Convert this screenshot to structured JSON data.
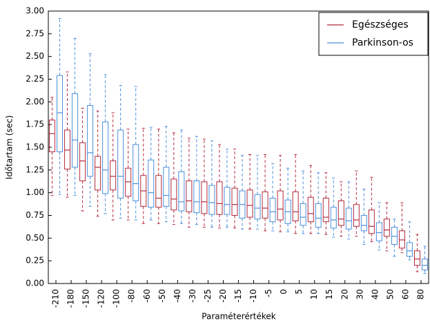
{
  "chart_data": {
    "type": "boxplot",
    "xlabel": "Paraméterértékek",
    "ylabel": "Időtartam (sec)",
    "categories": [
      "-210",
      "-180",
      "-150",
      "-120",
      "-100",
      "-80",
      "-60",
      "-50",
      "-40",
      "-30",
      "-25",
      "-20",
      "-15",
      "-10",
      "-5",
      "0",
      "5",
      "10",
      "15",
      "20",
      "30",
      "40",
      "50",
      "60",
      "80"
    ],
    "ylim": [
      0,
      3
    ],
    "yticks": [
      {
        "value": 0,
        "label": "0.00"
      },
      {
        "value": 0.25,
        "label": "0.25"
      },
      {
        "value": 0.5,
        "label": "0.50"
      },
      {
        "value": 0.75,
        "label": "0.75"
      },
      {
        "value": 1,
        "label": "1.00"
      },
      {
        "value": 1.25,
        "label": "1.25"
      },
      {
        "value": 1.5,
        "label": "1.50"
      },
      {
        "value": 1.75,
        "label": "1.75"
      },
      {
        "value": 2,
        "label": "2.00"
      },
      {
        "value": 2.25,
        "label": "2.25"
      },
      {
        "value": 2.5,
        "label": "2.50"
      },
      {
        "value": 2.75,
        "label": "2.75"
      },
      {
        "value": 3,
        "label": "3.00"
      }
    ],
    "legend": "upper right",
    "series": [
      {
        "name": "Egészséges",
        "color": "#b2283a",
        "low": [
          0.97,
          0.95,
          0.8,
          0.74,
          0.7,
          0.7,
          0.66,
          0.66,
          0.65,
          0.62,
          0.62,
          0.61,
          0.61,
          0.6,
          0.58,
          0.57,
          0.55,
          0.55,
          0.54,
          0.52,
          0.52,
          0.46,
          0.36,
          0.34,
          0.13
        ],
        "q1": [
          1.45,
          1.26,
          1.13,
          1.03,
          1.03,
          0.96,
          0.85,
          0.84,
          0.81,
          0.79,
          0.77,
          0.76,
          0.75,
          0.73,
          0.72,
          0.7,
          0.69,
          0.68,
          0.68,
          0.64,
          0.63,
          0.55,
          0.52,
          0.39,
          0.2
        ],
        "median": [
          1.65,
          1.47,
          1.35,
          1.28,
          1.18,
          1.12,
          1.02,
          0.94,
          0.93,
          0.91,
          0.9,
          0.88,
          0.87,
          0.86,
          0.83,
          0.82,
          0.79,
          0.77,
          0.73,
          0.71,
          0.7,
          0.63,
          0.59,
          0.48,
          0.27
        ],
        "q3": [
          1.8,
          1.69,
          1.55,
          1.4,
          1.35,
          1.27,
          1.19,
          1.19,
          1.15,
          1.13,
          1.12,
          1.12,
          1.05,
          1.03,
          1.01,
          1.02,
          1.01,
          0.95,
          0.94,
          0.91,
          0.87,
          0.81,
          0.71,
          0.58,
          0.36
        ],
        "high": [
          2.05,
          2.33,
          1.93,
          1.9,
          1.88,
          1.7,
          1.71,
          1.7,
          1.66,
          1.6,
          1.59,
          1.53,
          1.48,
          1.42,
          1.42,
          1.41,
          1.42,
          1.3,
          1.22,
          1.12,
          1.24,
          1.17,
          0.89,
          0.89,
          0.54
        ]
      },
      {
        "name": "Parkinson-os",
        "color": "#4a8fdc",
        "low": [
          0.98,
          0.97,
          0.85,
          0.77,
          0.72,
          0.7,
          0.7,
          0.68,
          0.66,
          0.65,
          0.62,
          0.62,
          0.6,
          0.6,
          0.58,
          0.57,
          0.55,
          0.55,
          0.51,
          0.49,
          0.43,
          0.37,
          0.3,
          0.26,
          0.11
        ],
        "q1": [
          1.45,
          1.28,
          1.18,
          0.99,
          0.94,
          0.91,
          0.84,
          0.85,
          0.8,
          0.78,
          0.76,
          0.76,
          0.72,
          0.71,
          0.68,
          0.66,
          0.64,
          0.62,
          0.61,
          0.6,
          0.58,
          0.47,
          0.43,
          0.3,
          0.15
        ],
        "median": [
          1.88,
          1.58,
          1.44,
          1.25,
          1.18,
          1.1,
          1.0,
          0.97,
          0.9,
          0.9,
          0.89,
          0.87,
          0.87,
          0.83,
          0.79,
          0.79,
          0.73,
          0.72,
          0.7,
          0.69,
          0.64,
          0.56,
          0.52,
          0.36,
          0.2
        ],
        "q3": [
          2.29,
          2.09,
          1.96,
          1.78,
          1.69,
          1.53,
          1.36,
          1.28,
          1.23,
          1.13,
          1.08,
          1.06,
          1.02,
          0.98,
          0.94,
          0.92,
          0.88,
          0.88,
          0.84,
          0.83,
          0.75,
          0.67,
          0.62,
          0.45,
          0.27
        ],
        "high": [
          2.92,
          2.7,
          2.53,
          2.3,
          2.18,
          2.17,
          1.72,
          1.73,
          1.69,
          1.62,
          1.57,
          1.48,
          1.41,
          1.41,
          1.32,
          1.27,
          1.24,
          1.22,
          1.16,
          1.12,
          1.04,
          0.89,
          0.71,
          0.68,
          0.41
        ]
      }
    ]
  }
}
